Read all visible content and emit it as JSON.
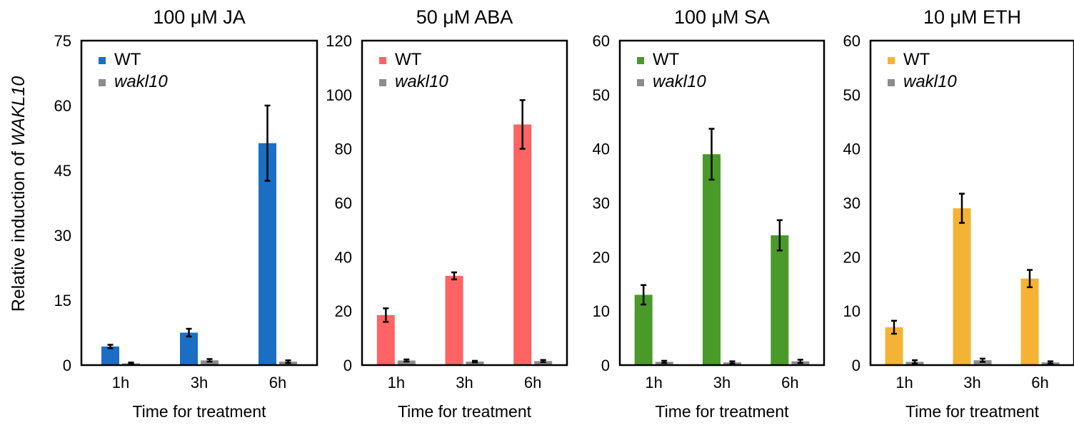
{
  "figure": {
    "ylabel_prefix": "Relative induction of ",
    "ylabel_gene": "WAKL10"
  },
  "chart_data": [
    {
      "type": "bar",
      "title": "100 μM JA",
      "xlabel": "Time for treatment",
      "categories": [
        "1h",
        "3h",
        "6h"
      ],
      "ylim": [
        0,
        75
      ],
      "yticks": [
        0,
        15,
        30,
        45,
        60,
        75
      ],
      "series": [
        {
          "name": "WT",
          "color": "#1a6fc4",
          "values": [
            4.3,
            7.5,
            51.3
          ],
          "errors": [
            0.4,
            0.9,
            8.7
          ]
        },
        {
          "name": "wakl10",
          "italic": true,
          "color": "#8c8c8c",
          "values": [
            0.4,
            1.1,
            0.8
          ],
          "errors": [
            0.2,
            0.3,
            0.3
          ]
        }
      ]
    },
    {
      "type": "bar",
      "title": "50 μM ABA",
      "xlabel": "Time for treatment",
      "categories": [
        "1h",
        "3h",
        "6h"
      ],
      "ylim": [
        0,
        120
      ],
      "yticks": [
        0,
        20,
        40,
        60,
        80,
        100,
        120
      ],
      "series": [
        {
          "name": "WT",
          "color": "#ff6464",
          "values": [
            18.5,
            33.0,
            89.0
          ],
          "errors": [
            2.5,
            1.3,
            9.0
          ]
        },
        {
          "name": "wakl10",
          "italic": true,
          "color": "#8c8c8c",
          "values": [
            1.7,
            1.3,
            1.5
          ],
          "errors": [
            0.4,
            0.3,
            0.4
          ]
        }
      ]
    },
    {
      "type": "bar",
      "title": "100 μM SA",
      "xlabel": "Time for treatment",
      "categories": [
        "1h",
        "3h",
        "6h"
      ],
      "ylim": [
        0,
        60
      ],
      "yticks": [
        0,
        10,
        20,
        30,
        40,
        50,
        60
      ],
      "series": [
        {
          "name": "WT",
          "color": "#4a9a2a",
          "values": [
            13.0,
            39.0,
            24.0
          ],
          "errors": [
            1.8,
            4.7,
            2.8
          ]
        },
        {
          "name": "wakl10",
          "italic": true,
          "color": "#8c8c8c",
          "values": [
            0.6,
            0.5,
            0.7
          ],
          "errors": [
            0.2,
            0.2,
            0.3
          ]
        }
      ]
    },
    {
      "type": "bar",
      "title": "10 μM ETH",
      "xlabel": "Time for treatment",
      "categories": [
        "1h",
        "3h",
        "6h"
      ],
      "ylim": [
        0,
        60
      ],
      "yticks": [
        0,
        10,
        20,
        30,
        40,
        50,
        60
      ],
      "series": [
        {
          "name": "WT",
          "color": "#f5b335",
          "values": [
            7.0,
            29.0,
            16.0
          ],
          "errors": [
            1.2,
            2.7,
            1.6
          ]
        },
        {
          "name": "wakl10",
          "italic": true,
          "color": "#8c8c8c",
          "values": [
            0.6,
            0.9,
            0.5
          ],
          "errors": [
            0.3,
            0.3,
            0.2
          ]
        }
      ]
    }
  ]
}
